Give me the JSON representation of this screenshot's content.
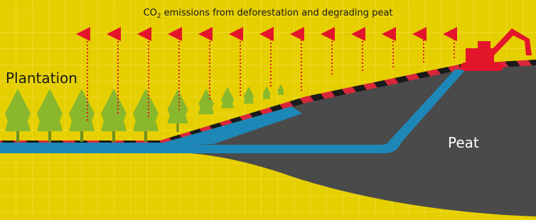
{
  "header": {
    "title_prefix": "CO",
    "title_subscript": "2",
    "title_rest": "emissions from deforestation and degrading peat"
  },
  "labels": {
    "plantation": "Plantation",
    "peat": "Peat"
  }
}
